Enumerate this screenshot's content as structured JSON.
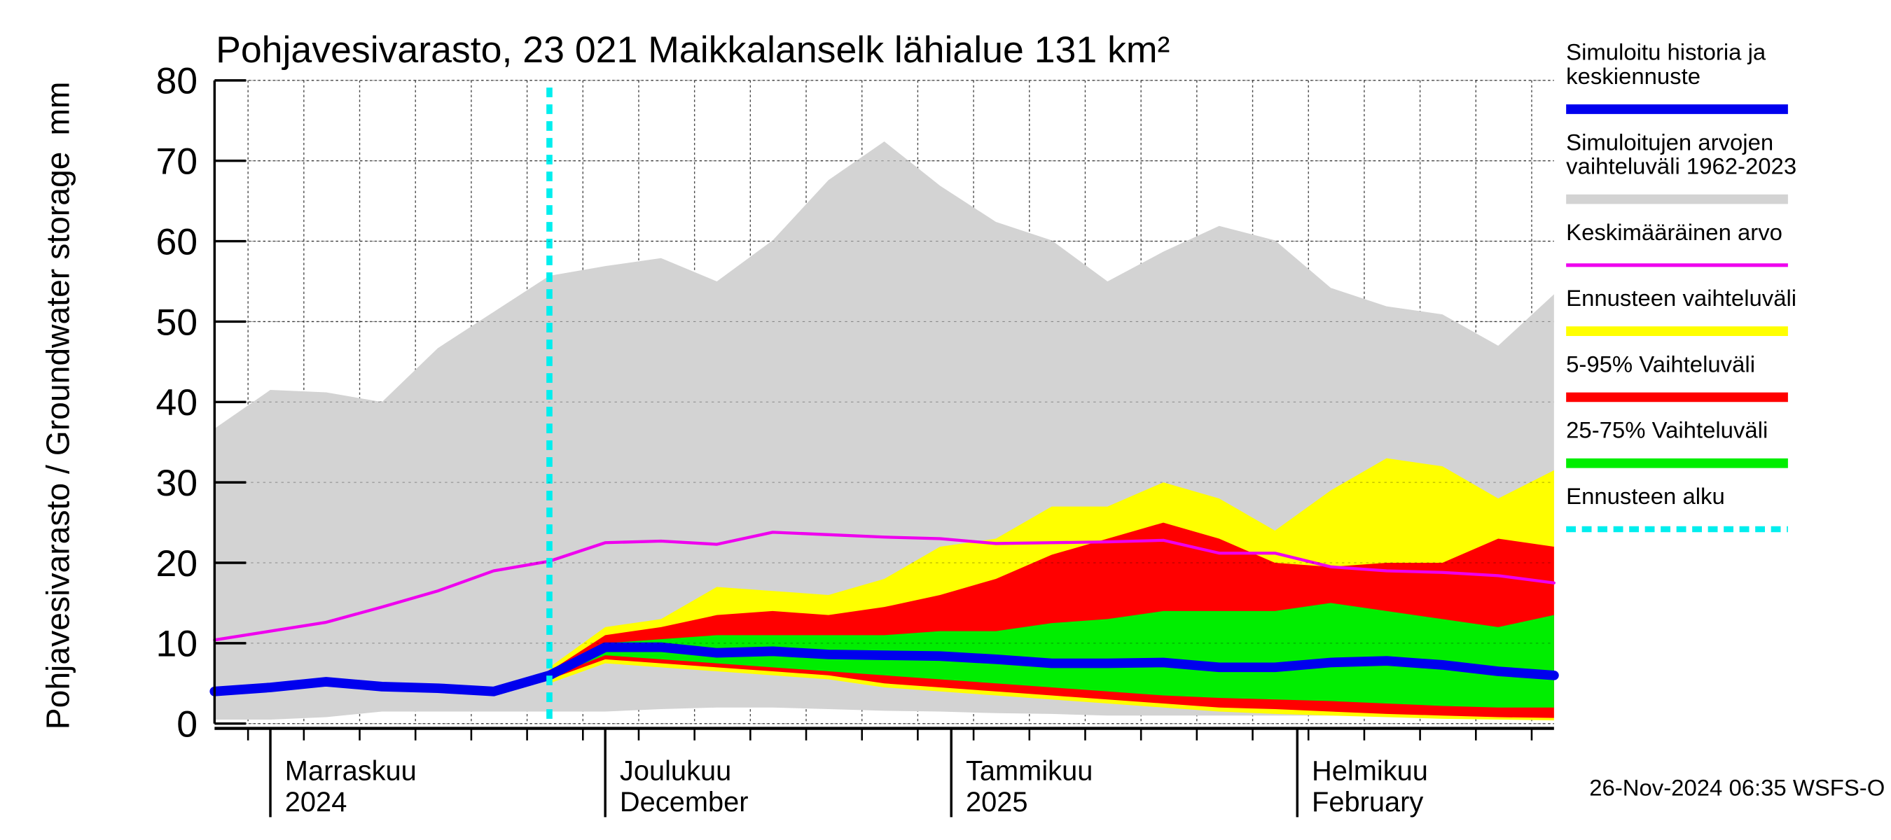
{
  "chart_data": {
    "type": "band-forecast",
    "title": "Pohjavesivarasto, 23 021 Maikkalanselk lähialue 131 km²",
    "ylabel": "Pohjavesivarasto / Groundwater storage",
    "yunit": "mm",
    "footer": "26-Nov-2024 06:35 WSFS-O",
    "x": [
      0,
      5,
      10,
      15,
      20,
      25,
      30,
      35,
      40,
      45,
      50,
      55,
      60,
      65,
      70,
      75,
      80,
      85,
      90,
      95,
      100,
      105,
      110,
      115,
      120
    ],
    "xlim": [
      0,
      120
    ],
    "xticks": [
      {
        "value": 5,
        "label": [
          "Marraskuu",
          "2024"
        ]
      },
      {
        "value": 35,
        "label": [
          "Joulukuu",
          "December"
        ]
      },
      {
        "value": 66,
        "label": [
          "Tammikuu",
          "2025"
        ]
      },
      {
        "value": 97,
        "label": [
          "Helmikuu",
          "February"
        ]
      }
    ],
    "xgrid": [
      3,
      8,
      13,
      18,
      23,
      28,
      33,
      38,
      43,
      48,
      53,
      58,
      63,
      68,
      73,
      78,
      83,
      88,
      93,
      98,
      103,
      108,
      113,
      118
    ],
    "ylim": [
      0,
      80
    ],
    "yticks": [
      0,
      10,
      20,
      30,
      40,
      50,
      60,
      70,
      80
    ],
    "grid": true,
    "series": [
      {
        "name": "Simuloitu historia ja\nkeskiennuste",
        "kind": "line",
        "width": 8,
        "color": "#0000ee",
        "values": [
          4,
          4.5,
          5.2,
          4.6,
          4.4,
          4,
          6,
          9.5,
          9.5,
          8.8,
          9,
          8.6,
          8.5,
          8.4,
          8,
          7.5,
          7.5,
          7.6,
          7,
          7,
          7.6,
          7.8,
          7.3,
          6.5,
          6
        ]
      },
      {
        "name": "Simuloitujen arvojen\nvaihteluväli 1962-2023",
        "kind": "band",
        "color": "#d3d3d3",
        "upper": [
          36.7,
          41.5,
          41.2,
          40,
          46.7,
          51.2,
          55.7,
          56.9,
          57.9,
          55,
          60.1,
          67.6,
          72.4,
          66.9,
          62.4,
          60.1,
          55,
          58.7,
          61.9,
          60.1,
          54.2,
          51.9,
          50.9,
          47,
          53.4
        ],
        "lower": [
          0.5,
          0.5,
          0.8,
          1.5,
          1.5,
          1.5,
          1.5,
          1.5,
          1.8,
          2,
          2,
          1.8,
          1.6,
          1.5,
          1.3,
          1.2,
          1,
          1,
          1,
          1,
          1,
          1,
          1,
          1,
          1
        ]
      },
      {
        "name": "Keskimääräinen arvo",
        "kind": "line",
        "width": 2.5,
        "color": "#ee00ee",
        "values": [
          10.4,
          11.5,
          12.6,
          14.5,
          16.5,
          19,
          20.2,
          22.5,
          22.7,
          22.3,
          23.8,
          23.5,
          23.2,
          23,
          22.4,
          22.5,
          22.6,
          22.8,
          21.2,
          21.2,
          19.5,
          19,
          18.8,
          18.4,
          17.5
        ]
      },
      {
        "name": "Ennusteen vaihteluväli",
        "kind": "band",
        "color": "#ffff00",
        "upper": [
          null,
          null,
          null,
          null,
          null,
          null,
          7,
          12,
          13,
          17,
          16.5,
          16,
          18,
          22,
          23,
          27,
          27,
          30,
          28,
          24,
          29,
          33,
          32,
          28,
          31.5
        ],
        "lower": [
          null,
          null,
          null,
          null,
          null,
          null,
          5,
          7.5,
          7,
          6.5,
          6,
          5.5,
          4.5,
          4,
          3.5,
          3,
          2.5,
          2,
          1.5,
          1.2,
          1,
          0.8,
          0.6,
          0.5,
          0.4
        ]
      },
      {
        "name": "5-95% Vaihteluväli",
        "kind": "band",
        "color": "#ff0000",
        "upper": [
          null,
          null,
          null,
          null,
          null,
          null,
          6.5,
          11,
          12,
          13.5,
          14,
          13.5,
          14.5,
          16,
          18,
          21,
          23,
          25,
          23,
          20,
          19.5,
          20,
          20,
          23,
          22
        ],
        "lower": [
          null,
          null,
          null,
          null,
          null,
          null,
          5.5,
          8,
          7.5,
          7,
          6.5,
          6,
          5,
          4.5,
          4,
          3.5,
          3,
          2.5,
          2,
          1.8,
          1.5,
          1.2,
          1,
          0.8,
          0.7
        ]
      },
      {
        "name": "25-75% Vaihteluväli",
        "kind": "band",
        "color": "#00ee00",
        "upper": [
          null,
          null,
          null,
          null,
          null,
          null,
          6.2,
          10,
          10.5,
          11,
          11,
          11,
          11,
          11.5,
          11.5,
          12.5,
          13,
          14,
          14,
          14,
          15,
          14,
          13,
          12,
          13.5
        ],
        "lower": [
          null,
          null,
          null,
          null,
          null,
          null,
          5.8,
          8.5,
          8,
          7.5,
          7,
          6.5,
          6,
          5.5,
          5,
          4.5,
          4,
          3.5,
          3.2,
          3,
          2.8,
          2.5,
          2.2,
          2,
          2
        ]
      },
      {
        "name": "Ennusteen alku",
        "kind": "vline",
        "width": 5,
        "color": "#00eeee",
        "x": 30
      }
    ]
  }
}
